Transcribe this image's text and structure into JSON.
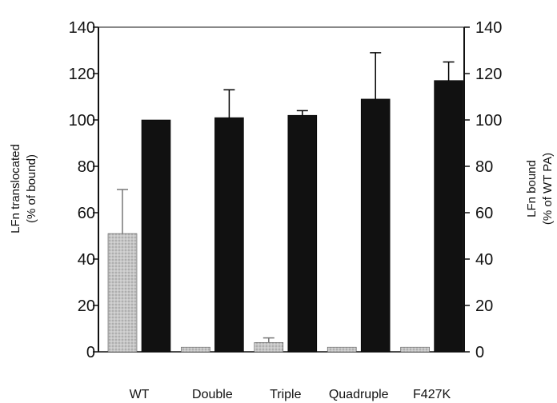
{
  "chart_data": {
    "type": "bar",
    "categories": [
      "WT",
      "Double",
      "Triple",
      "Quadruple",
      "F427K"
    ],
    "left_axis": {
      "label_line1": "LFn translocated",
      "label_line2": "(% of bound)",
      "ylim": [
        0,
        140
      ],
      "ticks": [
        "0",
        "20",
        "40",
        "60",
        "80",
        "100",
        "120",
        "140"
      ]
    },
    "right_axis": {
      "label_line1": "LFn bound",
      "label_line2": "(% of WT PA)",
      "ylim": [
        0,
        140
      ],
      "ticks": [
        "0",
        "20",
        "40",
        "60",
        "80",
        "100",
        "120",
        "140"
      ]
    },
    "series": [
      {
        "axis": "left",
        "color": "#b8b8b8",
        "pattern": "stippled-gray",
        "values": [
          51,
          2,
          4,
          2,
          2
        ],
        "errors": [
          19,
          0.5,
          2,
          0.5,
          0.5
        ]
      },
      {
        "axis": "right",
        "color": "#111111",
        "values": [
          100,
          101,
          102,
          109,
          117
        ],
        "errors": [
          0,
          12,
          2,
          20,
          8
        ]
      }
    ],
    "grid": false,
    "legend": "none"
  }
}
